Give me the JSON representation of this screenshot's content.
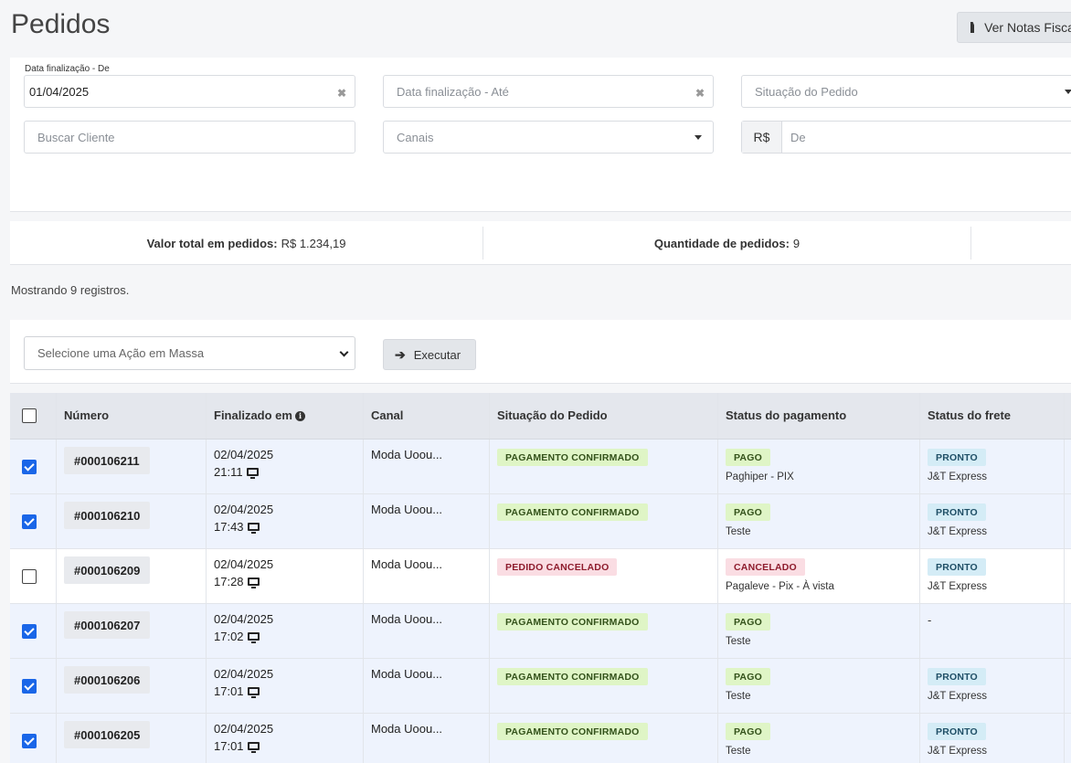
{
  "page": {
    "title": "Pedidos",
    "notes_button": "Ver Notas Fiscais"
  },
  "filters": {
    "date_from_label": "Data finalização - De",
    "date_from_value": "01/04/2025",
    "date_to_placeholder": "Data finalização - Até",
    "status_placeholder": "Situação do Pedido",
    "client_placeholder": "Buscar Cliente",
    "channels_placeholder": "Canais",
    "currency_prefix": "R$",
    "value_from_placeholder": "De"
  },
  "summary": {
    "total_label": "Valor total em pedidos:",
    "total_value": "R$ 1.234,19",
    "count_label": "Quantidade de pedidos:",
    "count_value": "9"
  },
  "records_text": "Mostrando 9 registros.",
  "bulk": {
    "select_placeholder": "Selecione uma Ação em Massa",
    "execute_label": "Executar"
  },
  "table": {
    "headers": {
      "numero": "Número",
      "finalizado": "Finalizado em",
      "canal": "Canal",
      "situacao": "Situação do Pedido",
      "pagamento": "Status do pagamento",
      "frete": "Status do frete"
    },
    "rows": [
      {
        "checked": true,
        "numero": "#000106211",
        "date": "02/04/2025",
        "time": "21:11",
        "canal": "Moda Uoou...",
        "situacao": "PAGAMENTO CONFIRMADO",
        "pagamento": "PAGO",
        "pagamento_detalhe": "Paghiper - PIX",
        "frete": "PRONTO",
        "frete_detalhe": "J&T Express"
      },
      {
        "checked": true,
        "numero": "#000106210",
        "date": "02/04/2025",
        "time": "17:43",
        "canal": "Moda Uoou...",
        "situacao": "PAGAMENTO CONFIRMADO",
        "pagamento": "PAGO",
        "pagamento_detalhe": "Teste",
        "frete": "PRONTO",
        "frete_detalhe": "J&T Express"
      },
      {
        "checked": false,
        "numero": "#000106209",
        "date": "02/04/2025",
        "time": "17:28",
        "canal": "Moda Uoou...",
        "situacao": "PEDIDO CANCELADO",
        "pagamento": "CANCELADO",
        "pagamento_detalhe": "Pagaleve - Pix - À vista",
        "frete": "PRONTO",
        "frete_detalhe": "J&T Express"
      },
      {
        "checked": true,
        "numero": "#000106207",
        "date": "02/04/2025",
        "time": "17:02",
        "canal": "Moda Uoou...",
        "situacao": "PAGAMENTO CONFIRMADO",
        "pagamento": "PAGO",
        "pagamento_detalhe": "Teste",
        "frete": "-",
        "frete_detalhe": ""
      },
      {
        "checked": true,
        "numero": "#000106206",
        "date": "02/04/2025",
        "time": "17:01",
        "canal": "Moda Uoou...",
        "situacao": "PAGAMENTO CONFIRMADO",
        "pagamento": "PAGO",
        "pagamento_detalhe": "Teste",
        "frete": "PRONTO",
        "frete_detalhe": "J&T Express"
      },
      {
        "checked": true,
        "numero": "#000106205",
        "date": "02/04/2025",
        "time": "17:01",
        "canal": "Moda Uoou...",
        "situacao": "PAGAMENTO CONFIRMADO",
        "pagamento": "PAGO",
        "pagamento_detalhe": "Teste",
        "frete": "PRONTO",
        "frete_detalhe": "J&T Express"
      }
    ]
  },
  "colors": {
    "accent_checkbox": "#1a66e8",
    "badge_green": "#dff5c6",
    "badge_red": "#fadde3",
    "badge_blue": "#d4ecf6"
  }
}
